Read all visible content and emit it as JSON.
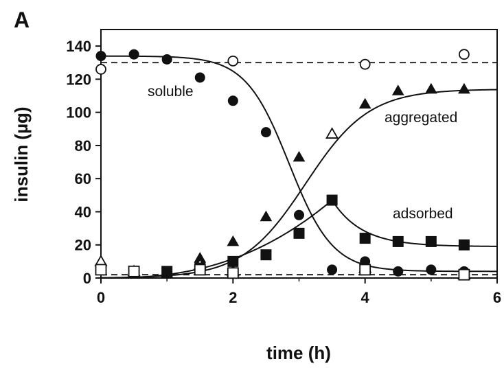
{
  "chart_data": {
    "panel_label": "A",
    "type": "scatter",
    "xlabel": "time (h)",
    "ylabel": "insulin (µg)",
    "xlim": [
      0,
      6
    ],
    "ylim": [
      0,
      150
    ],
    "xticks": [
      "0",
      "2",
      "4",
      "6"
    ],
    "yticks": [
      "0",
      "20",
      "40",
      "60",
      "80",
      "100",
      "120",
      "140"
    ],
    "annotations": {
      "soluble": "soluble",
      "aggregated": "aggregated",
      "adsorbed": "adsorbed"
    },
    "series": [
      {
        "marker": "filled-circle",
        "points": [
          [
            0,
            134
          ],
          [
            0.5,
            135
          ],
          [
            1,
            132
          ],
          [
            1.5,
            121
          ],
          [
            2,
            107
          ],
          [
            2.5,
            88
          ],
          [
            3,
            38
          ],
          [
            3.5,
            5
          ],
          [
            4,
            10
          ],
          [
            4.5,
            4
          ],
          [
            5,
            5
          ],
          [
            5.5,
            4
          ]
        ]
      },
      {
        "marker": "open-circle",
        "points": [
          [
            0,
            126
          ],
          [
            2,
            131
          ],
          [
            4,
            129
          ],
          [
            5.5,
            135
          ]
        ]
      },
      {
        "marker": "filled-triangle",
        "points": [
          [
            0.5,
            3
          ],
          [
            1,
            3
          ],
          [
            1.5,
            12
          ],
          [
            2,
            22
          ],
          [
            2.5,
            37
          ],
          [
            3,
            73
          ],
          [
            3.5,
            87
          ],
          [
            4,
            105
          ],
          [
            4.5,
            113
          ],
          [
            5,
            114
          ],
          [
            5.5,
            114
          ]
        ]
      },
      {
        "marker": "open-triangle",
        "points": [
          [
            0,
            10
          ],
          [
            0.5,
            4
          ],
          [
            1.5,
            8
          ],
          [
            2,
            4
          ],
          [
            3.5,
            87
          ],
          [
            4,
            6
          ],
          [
            5.5,
            2
          ]
        ]
      },
      {
        "marker": "filled-square",
        "points": [
          [
            0.5,
            4
          ],
          [
            1,
            4
          ],
          [
            1.5,
            6
          ],
          [
            2,
            10
          ],
          [
            2.5,
            14
          ],
          [
            3,
            27
          ],
          [
            3.5,
            47
          ],
          [
            4,
            24
          ],
          [
            4.5,
            22
          ],
          [
            5,
            22
          ],
          [
            5.5,
            20
          ]
        ]
      },
      {
        "marker": "open-square",
        "points": [
          [
            0,
            5
          ],
          [
            0.5,
            4
          ],
          [
            1.5,
            5
          ],
          [
            2,
            3
          ],
          [
            4,
            5
          ],
          [
            5.5,
            2
          ]
        ]
      }
    ],
    "reference_lines": [
      {
        "style": "dashed",
        "y": 130
      },
      {
        "style": "dashed",
        "y": 2
      }
    ]
  }
}
